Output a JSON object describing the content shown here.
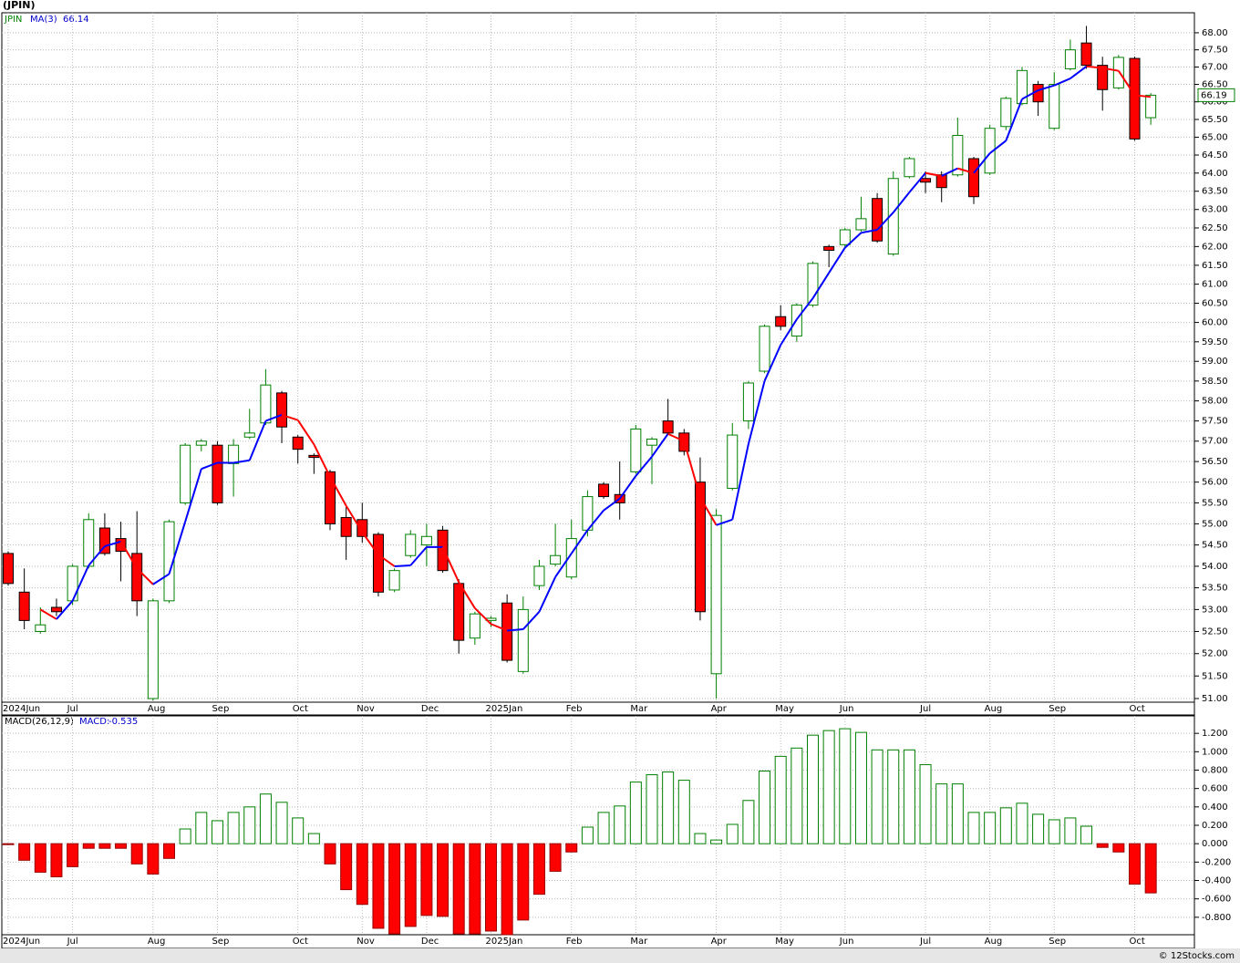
{
  "chart_data": [
    {
      "type": "candlestick",
      "title": "(JPIN)",
      "log_scale": true,
      "grid": true,
      "categories": [
        "2024Jun",
        null,
        null,
        null,
        "Jul",
        null,
        null,
        null,
        null,
        "Aug",
        null,
        null,
        null,
        "Sep",
        null,
        null,
        null,
        null,
        "Oct",
        null,
        null,
        null,
        "Nov",
        null,
        null,
        null,
        "Dec",
        null,
        null,
        null,
        "2025Jan",
        null,
        null,
        null,
        null,
        "Feb",
        null,
        null,
        null,
        "Mar",
        null,
        null,
        null,
        null,
        "Apr",
        null,
        null,
        null,
        "May",
        null,
        null,
        null,
        "Jun",
        null,
        null,
        null,
        null,
        "Jul",
        null,
        null,
        null,
        "Aug",
        null,
        null,
        null,
        "Sep",
        null,
        null,
        null,
        null,
        "Oct",
        null
      ],
      "series": [
        {
          "name": "JPIN",
          "up_color": "#008000",
          "down_color": "#ff0000",
          "open": [
            54.3,
            53.4,
            52.5,
            53.05,
            53.2,
            54.0,
            54.9,
            54.65,
            54.3,
            51.0,
            53.2,
            55.5,
            56.9,
            56.9,
            56.45,
            57.1,
            57.45,
            58.2,
            57.1,
            56.65,
            56.25,
            55.15,
            55.1,
            54.75,
            53.45,
            54.25,
            54.5,
            54.85,
            53.6,
            52.35,
            52.75,
            53.15,
            51.6,
            53.55,
            54.05,
            53.75,
            54.85,
            55.95,
            55.7,
            56.25,
            56.9,
            57.5,
            57.2,
            56.0,
            51.55,
            55.85,
            57.5,
            58.75,
            60.15,
            59.65,
            60.45,
            62.0,
            62.05,
            62.45,
            63.3,
            61.8,
            63.9,
            63.85,
            63.95,
            63.95,
            64.4,
            64.0,
            65.3,
            65.95,
            66.5,
            65.25,
            66.95,
            67.7,
            67.05,
            66.4,
            67.25,
            65.55
          ],
          "high": [
            54.35,
            53.95,
            53.05,
            53.25,
            54.05,
            55.25,
            55.25,
            55.05,
            55.3,
            53.25,
            55.1,
            56.95,
            57.05,
            57.0,
            57.05,
            57.8,
            58.8,
            58.25,
            57.15,
            56.7,
            56.3,
            55.4,
            55.5,
            54.8,
            53.95,
            54.85,
            55.0,
            54.95,
            53.7,
            52.95,
            52.85,
            53.35,
            53.3,
            54.15,
            55.0,
            55.1,
            55.8,
            56.0,
            56.5,
            57.4,
            57.1,
            58.05,
            57.3,
            56.6,
            55.35,
            57.45,
            58.5,
            59.95,
            60.45,
            60.5,
            61.6,
            62.05,
            62.5,
            63.35,
            63.45,
            64.05,
            64.45,
            64.05,
            64.05,
            65.55,
            64.45,
            65.35,
            66.15,
            67.0,
            66.6,
            66.85,
            67.8,
            68.2,
            67.3,
            67.35,
            67.3,
            66.25
          ],
          "low": [
            53.55,
            52.55,
            52.45,
            52.85,
            53.1,
            53.95,
            54.25,
            53.65,
            52.85,
            50.95,
            53.15,
            55.45,
            56.75,
            55.45,
            55.65,
            57.05,
            57.4,
            56.95,
            56.45,
            56.2,
            54.85,
            54.15,
            54.55,
            53.3,
            53.4,
            54.2,
            54.0,
            53.85,
            52.0,
            52.2,
            52.6,
            51.8,
            51.55,
            53.45,
            54.0,
            53.7,
            54.7,
            55.6,
            55.1,
            56.2,
            55.95,
            57.15,
            56.65,
            52.75,
            51.0,
            55.8,
            57.3,
            58.7,
            59.8,
            59.5,
            60.4,
            61.45,
            61.95,
            62.4,
            62.1,
            61.75,
            63.85,
            63.45,
            63.2,
            63.9,
            63.15,
            63.95,
            65.2,
            65.9,
            65.6,
            65.2,
            66.9,
            66.95,
            65.75,
            66.35,
            64.9,
            65.35
          ],
          "close": [
            53.6,
            52.75,
            52.65,
            52.95,
            54.0,
            55.1,
            54.3,
            54.35,
            53.2,
            53.2,
            55.05,
            56.9,
            57.0,
            55.5,
            56.9,
            57.2,
            58.4,
            57.35,
            56.8,
            56.6,
            55.0,
            54.7,
            54.7,
            53.4,
            53.9,
            54.75,
            54.7,
            53.9,
            52.3,
            52.9,
            52.8,
            51.85,
            53.0,
            54.0,
            54.25,
            54.65,
            55.65,
            55.65,
            55.5,
            57.3,
            57.05,
            57.2,
            56.75,
            52.95,
            55.2,
            57.15,
            58.45,
            59.9,
            59.9,
            60.45,
            61.55,
            61.9,
            62.45,
            62.75,
            62.15,
            63.85,
            64.4,
            63.75,
            63.6,
            65.05,
            63.35,
            65.25,
            66.1,
            66.9,
            66.0,
            66.5,
            67.5,
            67.05,
            66.35,
            67.28,
            64.95,
            66.19
          ]
        },
        {
          "name": "MA(3)",
          "up_color": "#0000ff",
          "down_color": "#ff0000",
          "values": [
            null,
            null,
            53.0,
            52.78,
            53.2,
            54.02,
            54.47,
            54.58,
            53.95,
            53.58,
            53.82,
            55.05,
            56.32,
            56.47,
            56.47,
            56.53,
            57.5,
            57.65,
            57.52,
            56.92,
            56.13,
            55.43,
            54.8,
            54.27,
            54.0,
            54.02,
            54.45,
            54.45,
            53.63,
            53.03,
            52.67,
            52.52,
            52.55,
            52.95,
            53.75,
            54.3,
            54.85,
            55.32,
            55.6,
            56.15,
            56.62,
            57.18,
            57.0,
            55.63,
            54.97,
            55.1,
            56.93,
            58.5,
            59.42,
            60.08,
            60.63,
            61.3,
            61.97,
            62.37,
            62.45,
            62.92,
            63.47,
            64.0,
            63.92,
            64.13,
            64.0,
            64.55,
            64.9,
            66.08,
            66.33,
            66.47,
            66.67,
            67.02,
            66.97,
            66.89,
            66.19,
            66.14
          ]
        }
      ],
      "ylim": [
        50.92,
        68.59
      ],
      "yticks": [
        {
          "value": 51,
          "label": "51.00"
        },
        {
          "value": 51.5,
          "label": "51.50"
        },
        {
          "value": 52,
          "label": "52.00"
        },
        {
          "value": 52.5,
          "label": "52.50"
        },
        {
          "value": 53,
          "label": "53.00"
        },
        {
          "value": 53.5,
          "label": "53.50"
        },
        {
          "value": 54,
          "label": "54.00"
        },
        {
          "value": 54.5,
          "label": "54.50"
        },
        {
          "value": 55,
          "label": "55.00"
        },
        {
          "value": 55.5,
          "label": "55.50"
        },
        {
          "value": 56,
          "label": "56.00"
        },
        {
          "value": 56.5,
          "label": "56.50"
        },
        {
          "value": 57,
          "label": "57.00"
        },
        {
          "value": 57.5,
          "label": "57.50"
        },
        {
          "value": 58,
          "label": "58.00"
        },
        {
          "value": 58.5,
          "label": "58.50"
        },
        {
          "value": 59,
          "label": "59.00"
        },
        {
          "value": 59.5,
          "label": "59.50"
        },
        {
          "value": 60,
          "label": "60.00"
        },
        {
          "value": 60.5,
          "label": "60.50"
        },
        {
          "value": 61,
          "label": "61.00"
        },
        {
          "value": 61.5,
          "label": "61.50"
        },
        {
          "value": 62,
          "label": "62.00"
        },
        {
          "value": 62.5,
          "label": "62.50"
        },
        {
          "value": 63,
          "label": "63.00"
        },
        {
          "value": 63.5,
          "label": "63.50"
        },
        {
          "value": 64,
          "label": "64.00"
        },
        {
          "value": 64.5,
          "label": "64.50"
        },
        {
          "value": 65,
          "label": "65.00"
        },
        {
          "value": 65.5,
          "label": "65.50"
        },
        {
          "value": 66,
          "label": "66.00"
        },
        {
          "value": 66.5,
          "label": "66.50"
        },
        {
          "value": 67,
          "label": "67.00"
        },
        {
          "value": 67.5,
          "label": "67.50"
        },
        {
          "value": 68,
          "label": "68.00"
        }
      ]
    },
    {
      "type": "bar",
      "grid": true,
      "categories": [
        "2024Jun",
        null,
        null,
        null,
        "Jul",
        null,
        null,
        null,
        null,
        "Aug",
        null,
        null,
        null,
        "Sep",
        null,
        null,
        null,
        null,
        "Oct",
        null,
        null,
        null,
        "Nov",
        null,
        null,
        null,
        "Dec",
        null,
        null,
        null,
        "2025Jan",
        null,
        null,
        null,
        null,
        "Feb",
        null,
        null,
        null,
        "Mar",
        null,
        null,
        null,
        null,
        "Apr",
        null,
        null,
        null,
        "May",
        null,
        null,
        null,
        "Jun",
        null,
        null,
        null,
        null,
        "Jul",
        null,
        null,
        null,
        "Aug",
        null,
        null,
        null,
        "Sep",
        null,
        null,
        null,
        null,
        "Oct",
        null
      ],
      "series": [
        {
          "name": "MACD(26,12,9)",
          "label": "MACD:",
          "up_color": "#008000",
          "down_color": "#ff0000",
          "values": [
            -0.01,
            -0.18,
            -0.31,
            -0.36,
            -0.25,
            -0.05,
            -0.05,
            -0.05,
            -0.22,
            -0.33,
            -0.16,
            0.16,
            0.34,
            0.25,
            0.34,
            0.4,
            0.54,
            0.45,
            0.28,
            0.11,
            -0.22,
            -0.5,
            -0.66,
            -0.92,
            -0.98,
            -0.9,
            -0.78,
            -0.79,
            -0.98,
            -0.98,
            -0.95,
            -0.99,
            -0.83,
            -0.55,
            -0.3,
            -0.09,
            0.18,
            0.34,
            0.41,
            0.67,
            0.75,
            0.78,
            0.69,
            0.11,
            0.04,
            0.21,
            0.47,
            0.79,
            0.95,
            1.04,
            1.18,
            1.23,
            1.25,
            1.21,
            1.02,
            1.02,
            1.02,
            0.86,
            0.65,
            0.65,
            0.34,
            0.34,
            0.39,
            0.44,
            0.32,
            0.26,
            0.28,
            0.19,
            -0.04,
            -0.09,
            -0.44,
            -0.535
          ]
        }
      ],
      "ylim": [
        -0.99,
        1.39
      ],
      "yticks": [
        {
          "value": -0.8,
          "label": "-0.800"
        },
        {
          "value": -0.6,
          "label": "-0.600"
        },
        {
          "value": -0.4,
          "label": "-0.400"
        },
        {
          "value": -0.2,
          "label": "-0.200"
        },
        {
          "value": 0,
          "label": "0.000"
        },
        {
          "value": 0.2,
          "label": "0.200"
        },
        {
          "value": 0.4,
          "label": "0.400"
        },
        {
          "value": 0.6,
          "label": "0.600"
        },
        {
          "value": 0.8,
          "label": "0.800"
        },
        {
          "value": 1,
          "label": "1.000"
        },
        {
          "value": 1.2,
          "label": "1.200"
        }
      ]
    }
  ],
  "footer": "© 12Stocks.com"
}
